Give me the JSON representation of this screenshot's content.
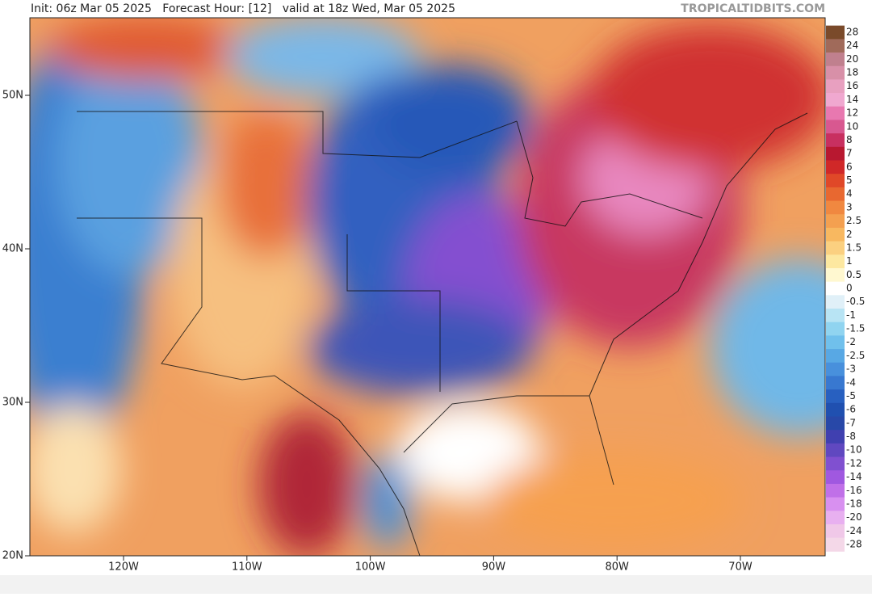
{
  "header": {
    "text": "Init: 06z Mar 05 2025   Forecast Hour: [12]   valid at 18z Wed, Mar 05 2025",
    "watermark": "TROPICALTIDBITS.COM"
  },
  "map": {
    "lat_labels": [
      "50N",
      "40N",
      "30N",
      "20N"
    ],
    "lon_labels": [
      "120W",
      "110W",
      "100W",
      "90W",
      "80W",
      "70W"
    ]
  },
  "colorbar": {
    "levels": [
      28,
      24,
      20,
      18,
      16,
      14,
      12,
      10,
      8,
      7,
      6,
      5,
      4,
      3,
      2.5,
      2,
      1.5,
      1,
      0.5,
      0,
      -0.5,
      -1,
      -1.5,
      -2,
      -2.5,
      -3,
      -4,
      -5,
      -6,
      -7,
      -8,
      -10,
      -12,
      -14,
      -16,
      -18,
      -20,
      -24,
      -28
    ],
    "colors": [
      "#7a4a2a",
      "#a06a5a",
      "#c0808e",
      "#d890a8",
      "#e8a0c0",
      "#f0a8d0",
      "#e878b0",
      "#d85890",
      "#c83060",
      "#b81830",
      "#d02828",
      "#e04828",
      "#e86830",
      "#f08840",
      "#f4a050",
      "#f8b860",
      "#fbd080",
      "#fde8a0",
      "#fff8d0",
      "#ffffff",
      "#e0f0f8",
      "#b8e4f4",
      "#90d4f0",
      "#70c0ec",
      "#58a8e4",
      "#4890dc",
      "#3878d0",
      "#2860c0",
      "#2050b0",
      "#2848a8",
      "#4040b0",
      "#6048c0",
      "#8050d0",
      "#a058e0",
      "#c070e8",
      "#d890f0",
      "#e8b0f0",
      "#f0c8e8",
      "#f4d8e8"
    ]
  }
}
